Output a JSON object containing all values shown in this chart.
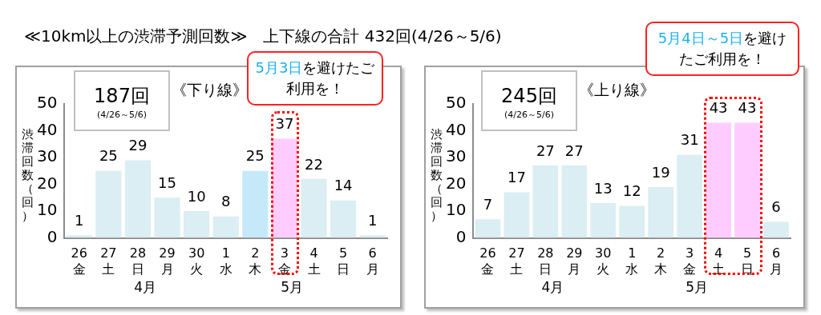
{
  "chart_data": [
    {
      "type": "bar",
      "title": "≪10km以上の渋滞予測回数≫　上下線の合計 432回(4/26～5/6)",
      "subtitle": "《下り線》",
      "ylabel": "渋滞回数（回）",
      "categories": [
        "26 金",
        "27 土",
        "28 日",
        "29 月",
        "30 火",
        "1 水",
        "2 木",
        "3 金",
        "4 土",
        "5 日",
        "6 月"
      ],
      "values": [
        1,
        25,
        29,
        15,
        10,
        8,
        25,
        37,
        22,
        14,
        1
      ],
      "colors": [
        "#daeef3",
        "#daeef3",
        "#daeef3",
        "#daeef3",
        "#daeef3",
        "#daeef3",
        "#c6e9f9",
        "#ffccff",
        "#daeef3",
        "#daeef3",
        "#daeef3"
      ],
      "ylim": [
        0,
        50
      ],
      "yticks": [
        0,
        10,
        20,
        30,
        40,
        50
      ],
      "grid": false,
      "legend": false,
      "data_labels": true,
      "annotations": [
        "187回",
        "(4/26～5/6)",
        "5月3日",
        "を避けたご利用を！",
        "4月",
        "5月"
      ]
    },
    {
      "type": "bar",
      "subtitle": "《上り線》",
      "ylabel": "渋滞回数（回）",
      "categories": [
        "26 金",
        "27 土",
        "28 日",
        "29 月",
        "30 火",
        "1 水",
        "2 木",
        "3 金",
        "4 土",
        "5 日",
        "6 月"
      ],
      "values": [
        7,
        17,
        27,
        27,
        13,
        12,
        19,
        31,
        43,
        43,
        6
      ],
      "colors": [
        "#daeef3",
        "#daeef3",
        "#daeef3",
        "#daeef3",
        "#daeef3",
        "#daeef3",
        "#daeef3",
        "#daeef3",
        "#ffccff",
        "#ffccff",
        "#daeef3"
      ],
      "ylim": [
        0,
        50
      ],
      "yticks": [
        0,
        10,
        20,
        30,
        40,
        50
      ],
      "grid": false,
      "legend": false,
      "data_labels": true,
      "annotations": [
        "245回",
        "(4/26～5/6)",
        "5月4日～5日",
        "を避けたご利用を！",
        "4月",
        "5月"
      ]
    }
  ]
}
